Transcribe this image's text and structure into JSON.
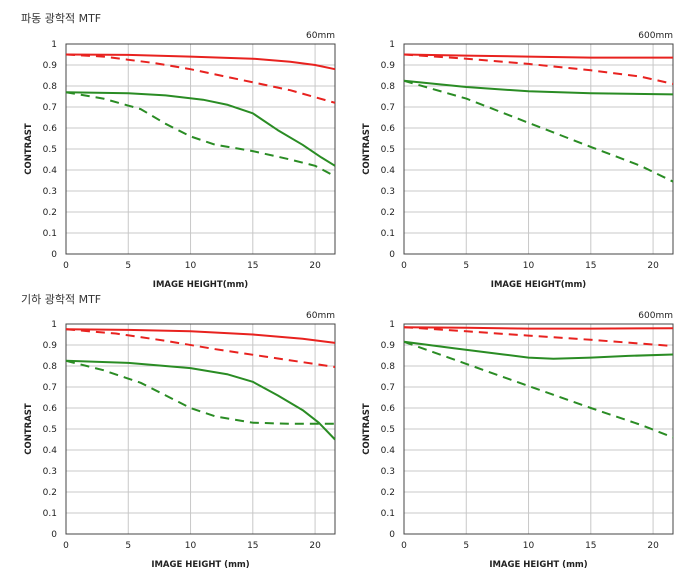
{
  "sections": {
    "wave": {
      "title": "파동 광학적 MTF"
    },
    "geometric": {
      "title": "기하 광학적 MTF"
    }
  },
  "colors": {
    "red": "#e8221f",
    "green": "#2a8c24",
    "grid": "#c8c8c8",
    "frame": "#444444"
  },
  "chart_data": [
    {
      "type": "line",
      "section": "파동 광학적 MTF",
      "focal": "60mm",
      "xlabel": "IMAGE HEIGHT(mm)",
      "ylabel": "CONTRAST",
      "xlim": [
        0,
        21.6
      ],
      "ylim": [
        0,
        1
      ],
      "xticks": [
        0,
        5,
        10,
        15,
        20
      ],
      "yticks": [
        0,
        0.1,
        0.2,
        0.3,
        0.4,
        0.5,
        0.6,
        0.7,
        0.8,
        0.9,
        1
      ],
      "grid": true,
      "series": [
        {
          "color": "red",
          "dash": false,
          "points": [
            [
              0,
              0.95
            ],
            [
              5,
              0.948
            ],
            [
              10,
              0.94
            ],
            [
              15,
              0.93
            ],
            [
              18,
              0.915
            ],
            [
              20,
              0.9
            ],
            [
              21.6,
              0.88
            ]
          ]
        },
        {
          "color": "red",
          "dash": true,
          "points": [
            [
              0,
              0.95
            ],
            [
              3,
              0.94
            ],
            [
              7,
              0.91
            ],
            [
              10,
              0.88
            ],
            [
              14,
              0.83
            ],
            [
              18,
              0.78
            ],
            [
              21.6,
              0.72
            ]
          ]
        },
        {
          "color": "green",
          "dash": false,
          "points": [
            [
              0,
              0.77
            ],
            [
              5,
              0.765
            ],
            [
              8,
              0.755
            ],
            [
              11,
              0.735
            ],
            [
              13,
              0.71
            ],
            [
              15,
              0.67
            ],
            [
              17,
              0.59
            ],
            [
              19,
              0.52
            ],
            [
              20.5,
              0.46
            ],
            [
              21.6,
              0.42
            ]
          ]
        },
        {
          "color": "green",
          "dash": true,
          "points": [
            [
              0,
              0.77
            ],
            [
              3,
              0.74
            ],
            [
              6,
              0.69
            ],
            [
              8,
              0.62
            ],
            [
              10,
              0.56
            ],
            [
              12,
              0.52
            ],
            [
              15,
              0.49
            ],
            [
              18,
              0.45
            ],
            [
              20,
              0.42
            ],
            [
              21.6,
              0.37
            ]
          ]
        }
      ]
    },
    {
      "type": "line",
      "section": "파동 광학적 MTF",
      "focal": "600mm",
      "xlabel": "IMAGE HEIGHT(mm)",
      "ylabel": "CONTRAST",
      "xlim": [
        0,
        21.6
      ],
      "ylim": [
        0,
        1
      ],
      "xticks": [
        0,
        5,
        10,
        15,
        20
      ],
      "yticks": [
        0,
        0.1,
        0.2,
        0.3,
        0.4,
        0.5,
        0.6,
        0.7,
        0.8,
        0.9,
        1
      ],
      "grid": true,
      "series": [
        {
          "color": "red",
          "dash": false,
          "points": [
            [
              0,
              0.95
            ],
            [
              5,
              0.945
            ],
            [
              10,
              0.94
            ],
            [
              15,
              0.935
            ],
            [
              21.6,
              0.935
            ]
          ]
        },
        {
          "color": "red",
          "dash": true,
          "points": [
            [
              0,
              0.95
            ],
            [
              5,
              0.93
            ],
            [
              10,
              0.905
            ],
            [
              15,
              0.875
            ],
            [
              19,
              0.845
            ],
            [
              21.6,
              0.81
            ]
          ]
        },
        {
          "color": "green",
          "dash": false,
          "points": [
            [
              0,
              0.825
            ],
            [
              5,
              0.795
            ],
            [
              10,
              0.775
            ],
            [
              15,
              0.765
            ],
            [
              21.6,
              0.76
            ]
          ]
        },
        {
          "color": "green",
          "dash": true,
          "points": [
            [
              0,
              0.825
            ],
            [
              5,
              0.74
            ],
            [
              10,
              0.625
            ],
            [
              15,
              0.51
            ],
            [
              19,
              0.42
            ],
            [
              21.6,
              0.345
            ]
          ]
        }
      ]
    },
    {
      "type": "line",
      "section": "기하 광학적 MTF",
      "focal": "60mm",
      "xlabel": "IMAGE HEIGHT (mm)",
      "ylabel": "CONTRAST",
      "xlim": [
        0,
        21.6
      ],
      "ylim": [
        0,
        1
      ],
      "xticks": [
        0,
        5,
        10,
        15,
        20
      ],
      "yticks": [
        0,
        0.1,
        0.2,
        0.3,
        0.4,
        0.5,
        0.6,
        0.7,
        0.8,
        0.9,
        1
      ],
      "grid": true,
      "series": [
        {
          "color": "red",
          "dash": false,
          "points": [
            [
              0,
              0.975
            ],
            [
              5,
              0.972
            ],
            [
              10,
              0.965
            ],
            [
              15,
              0.95
            ],
            [
              19,
              0.93
            ],
            [
              21.6,
              0.91
            ]
          ]
        },
        {
          "color": "red",
          "dash": true,
          "points": [
            [
              0,
              0.975
            ],
            [
              4,
              0.955
            ],
            [
              8,
              0.92
            ],
            [
              12,
              0.88
            ],
            [
              16,
              0.845
            ],
            [
              21.6,
              0.795
            ]
          ]
        },
        {
          "color": "green",
          "dash": false,
          "points": [
            [
              0,
              0.825
            ],
            [
              5,
              0.815
            ],
            [
              10,
              0.79
            ],
            [
              13,
              0.76
            ],
            [
              15,
              0.725
            ],
            [
              17,
              0.66
            ],
            [
              19,
              0.59
            ],
            [
              20.3,
              0.53
            ],
            [
              21.6,
              0.45
            ]
          ]
        },
        {
          "color": "green",
          "dash": true,
          "points": [
            [
              0,
              0.825
            ],
            [
              3,
              0.78
            ],
            [
              6,
              0.72
            ],
            [
              8,
              0.66
            ],
            [
              10,
              0.6
            ],
            [
              12,
              0.56
            ],
            [
              15,
              0.53
            ],
            [
              18,
              0.525
            ],
            [
              21.6,
              0.525
            ]
          ]
        }
      ]
    },
    {
      "type": "line",
      "section": "기하 광학적 MTF",
      "focal": "600mm",
      "xlabel": "IMAGE HEIGHT (mm)",
      "ylabel": "CONTRAST",
      "xlim": [
        0,
        21.6
      ],
      "ylim": [
        0,
        1
      ],
      "xticks": [
        0,
        5,
        10,
        15,
        20
      ],
      "yticks": [
        0,
        0.1,
        0.2,
        0.3,
        0.4,
        0.5,
        0.6,
        0.7,
        0.8,
        0.9,
        1
      ],
      "grid": true,
      "series": [
        {
          "color": "red",
          "dash": false,
          "points": [
            [
              0,
              0.985
            ],
            [
              5,
              0.982
            ],
            [
              10,
              0.978
            ],
            [
              15,
              0.978
            ],
            [
              21.6,
              0.98
            ]
          ]
        },
        {
          "color": "red",
          "dash": true,
          "points": [
            [
              0,
              0.985
            ],
            [
              5,
              0.965
            ],
            [
              10,
              0.945
            ],
            [
              15,
              0.925
            ],
            [
              21.6,
              0.895
            ]
          ]
        },
        {
          "color": "green",
          "dash": false,
          "points": [
            [
              0,
              0.915
            ],
            [
              4,
              0.885
            ],
            [
              8,
              0.855
            ],
            [
              10,
              0.84
            ],
            [
              12,
              0.835
            ],
            [
              15,
              0.84
            ],
            [
              18,
              0.848
            ],
            [
              21.6,
              0.855
            ]
          ]
        },
        {
          "color": "green",
          "dash": true,
          "points": [
            [
              0,
              0.915
            ],
            [
              5,
              0.81
            ],
            [
              10,
              0.705
            ],
            [
              15,
              0.6
            ],
            [
              19,
              0.52
            ],
            [
              21.6,
              0.46
            ]
          ]
        }
      ]
    }
  ]
}
